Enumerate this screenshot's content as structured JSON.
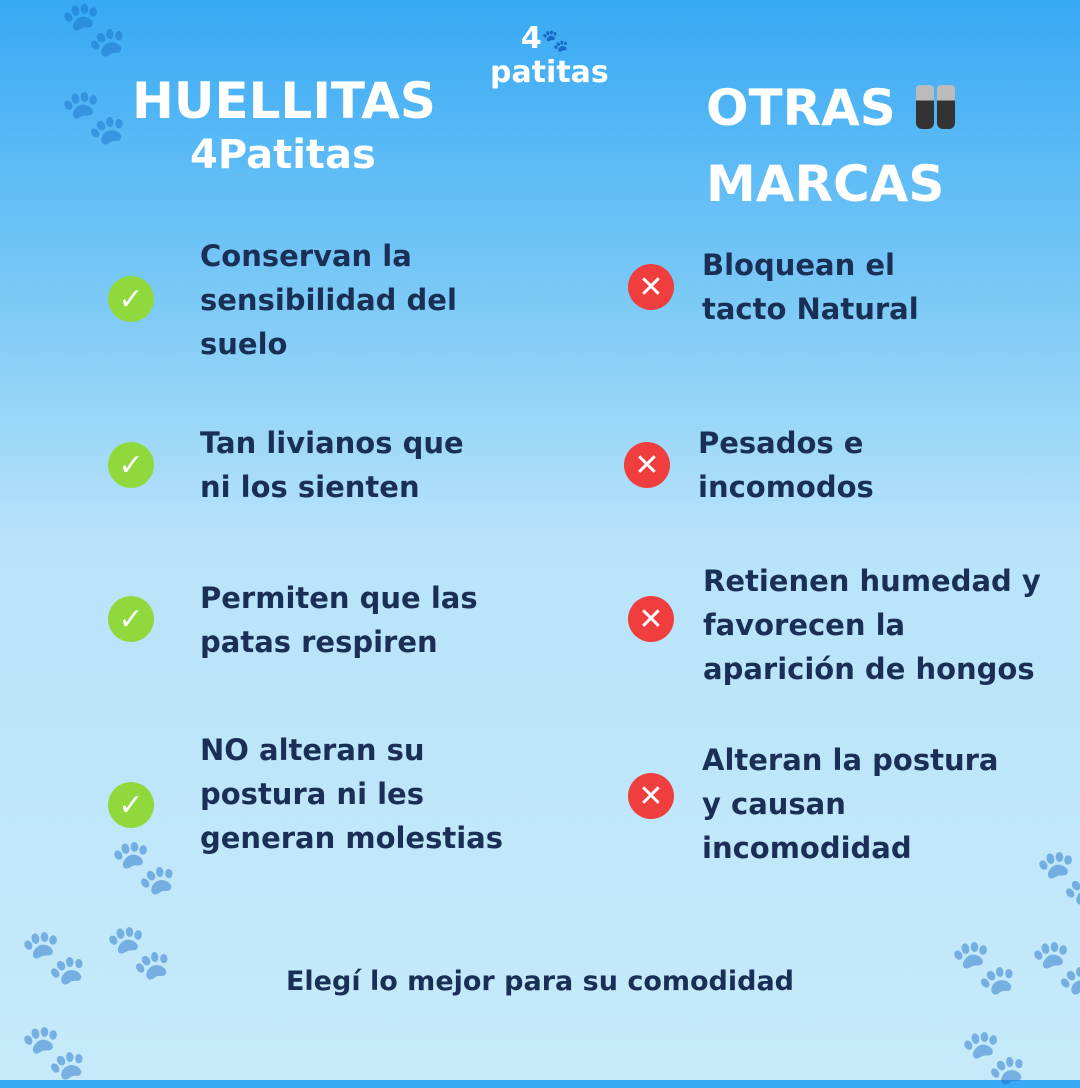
{
  "logo": {
    "number": "4",
    "word": "patitas"
  },
  "left": {
    "title": "HUELLITAS",
    "subtitle": "4Patitas",
    "items": [
      "Conservan la sensibilidad del suelo",
      "Tan livianos que ni los sienten",
      "Permiten que las patas respiren",
      "NO alteran su postura ni les generan molestias"
    ]
  },
  "right": {
    "title_line1": "OTRAS",
    "title_line2": "MARCAS",
    "items": [
      "Bloquean el tacto Natural",
      "Pesados e incomodos",
      "Retienen humedad y favorecen la aparición de hongos",
      "Alteran la postura y causan incomodidad"
    ]
  },
  "icons": {
    "check": "check-circle-icon",
    "cross": "x-circle-icon",
    "check_symbol": "✓",
    "cross_symbol": "✕"
  },
  "colors": {
    "check": "#8fd93c",
    "cross": "#f03d3d",
    "text": "#1a2f55"
  },
  "footer": "Elegí lo mejor para su comodidad"
}
